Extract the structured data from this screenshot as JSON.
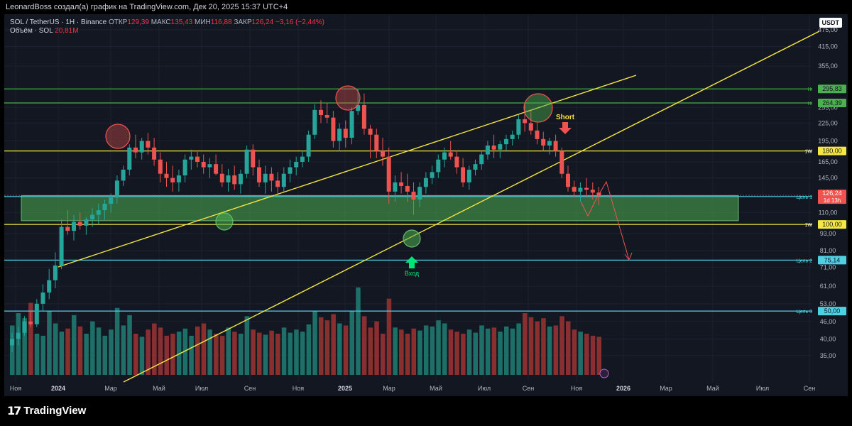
{
  "header": {
    "text": "LeonardBoss создал(а) график на TradingView.com, Дек 20, 2025 15:37 UTC+4"
  },
  "legend": {
    "symbol": "SOL / TetherUS · 1H · Binance",
    "open_label": "ОТКР",
    "open": "129,39",
    "high_label": "МАКС",
    "high": "135,43",
    "low_label": "МИН",
    "low": "116,88",
    "close_label": "ЗАКР",
    "close": "126,24",
    "change": "−3,16 (−2,44%)",
    "volume_label": "Объём · SOL",
    "volume": "20,81M"
  },
  "currency": "USDT",
  "footer": {
    "brand": "TradingView",
    "mark": "17"
  },
  "colors": {
    "background": "#131722",
    "up": "#26a69a",
    "down": "#ef5350",
    "yellow": "#f5e642",
    "green_line": "#4caf50",
    "cyan_line": "#4dd0e1",
    "zone": "#4caf50"
  },
  "chart_data": {
    "type": "candlestick",
    "price_scale": "log",
    "ylim": [
      30,
      480
    ],
    "y_ticks": [
      "475,00",
      "415,00",
      "355,00",
      "295,00",
      "255,00",
      "225,00",
      "195,00",
      "165,00",
      "145,00",
      "125,00",
      "110,00",
      "93,00",
      "81,00",
      "71,00",
      "61,00",
      "53,00",
      "46,00",
      "40,00",
      "35,00"
    ],
    "x_ticks": [
      "Ноя",
      "2024",
      "Мар",
      "Май",
      "Июл",
      "Сен",
      "Ноя",
      "2025",
      "Мар",
      "Май",
      "Июл",
      "Сен",
      "Ноя",
      "2026",
      "Мар",
      "Май",
      "Июл",
      "Сен"
    ],
    "x_tick_bold": [
      "2024",
      "2025",
      "2026"
    ],
    "candles": [
      [
        38,
        42,
        36,
        40
      ],
      [
        40,
        44,
        38,
        42
      ],
      [
        42,
        48,
        41,
        46
      ],
      [
        46,
        50,
        44,
        45
      ],
      [
        45,
        55,
        44,
        53
      ],
      [
        53,
        62,
        50,
        58
      ],
      [
        58,
        70,
        55,
        64
      ],
      [
        64,
        80,
        60,
        72
      ],
      [
        72,
        104,
        70,
        98
      ],
      [
        98,
        112,
        92,
        95
      ],
      [
        95,
        108,
        88,
        102
      ],
      [
        102,
        110,
        96,
        99
      ],
      [
        99,
        106,
        92,
        104
      ],
      [
        104,
        114,
        98,
        108
      ],
      [
        108,
        118,
        100,
        112
      ],
      [
        112,
        122,
        104,
        118
      ],
      [
        118,
        128,
        110,
        124
      ],
      [
        124,
        148,
        118,
        142
      ],
      [
        142,
        160,
        136,
        155
      ],
      [
        155,
        190,
        148,
        185
      ],
      [
        185,
        205,
        170,
        178
      ],
      [
        178,
        200,
        168,
        195
      ],
      [
        195,
        208,
        175,
        185
      ],
      [
        185,
        200,
        160,
        168
      ],
      [
        168,
        178,
        140,
        150
      ],
      [
        150,
        165,
        135,
        145
      ],
      [
        145,
        160,
        130,
        140
      ],
      [
        140,
        155,
        130,
        148
      ],
      [
        148,
        175,
        140,
        168
      ],
      [
        168,
        182,
        155,
        172
      ],
      [
        172,
        180,
        158,
        165
      ],
      [
        165,
        175,
        150,
        158
      ],
      [
        158,
        170,
        145,
        162
      ],
      [
        162,
        175,
        148,
        150
      ],
      [
        150,
        162,
        135,
        140
      ],
      [
        140,
        156,
        130,
        148
      ],
      [
        148,
        160,
        132,
        138
      ],
      [
        138,
        155,
        128,
        150
      ],
      [
        150,
        188,
        145,
        182
      ],
      [
        182,
        190,
        148,
        158
      ],
      [
        158,
        168,
        135,
        140
      ],
      [
        140,
        160,
        128,
        150
      ],
      [
        150,
        158,
        130,
        142
      ],
      [
        142,
        152,
        128,
        135
      ],
      [
        135,
        158,
        130,
        150
      ],
      [
        150,
        168,
        140,
        158
      ],
      [
        158,
        172,
        148,
        165
      ],
      [
        165,
        180,
        158,
        172
      ],
      [
        172,
        212,
        165,
        205
      ],
      [
        205,
        262,
        198,
        250
      ],
      [
        250,
        270,
        225,
        240
      ],
      [
        240,
        265,
        225,
        235
      ],
      [
        235,
        248,
        185,
        195
      ],
      [
        195,
        225,
        180,
        215
      ],
      [
        215,
        230,
        185,
        200
      ],
      [
        200,
        255,
        190,
        248
      ],
      [
        248,
        295,
        240,
        260
      ],
      [
        260,
        285,
        205,
        215
      ],
      [
        215,
        222,
        170,
        205
      ],
      [
        205,
        215,
        170,
        180
      ],
      [
        180,
        200,
        160,
        172
      ],
      [
        172,
        185,
        118,
        130
      ],
      [
        130,
        148,
        120,
        140
      ],
      [
        140,
        152,
        128,
        136
      ],
      [
        136,
        150,
        120,
        130
      ],
      [
        130,
        140,
        108,
        122
      ],
      [
        122,
        140,
        115,
        135
      ],
      [
        135,
        152,
        128,
        145
      ],
      [
        145,
        160,
        138,
        152
      ],
      [
        152,
        175,
        145,
        168
      ],
      [
        168,
        185,
        158,
        178
      ],
      [
        178,
        195,
        168,
        172
      ],
      [
        172,
        180,
        150,
        158
      ],
      [
        158,
        170,
        135,
        140
      ],
      [
        140,
        160,
        132,
        155
      ],
      [
        155,
        168,
        148,
        162
      ],
      [
        162,
        180,
        155,
        175
      ],
      [
        175,
        195,
        168,
        188
      ],
      [
        188,
        205,
        170,
        182
      ],
      [
        182,
        195,
        170,
        190
      ],
      [
        190,
        205,
        180,
        198
      ],
      [
        198,
        212,
        188,
        205
      ],
      [
        205,
        240,
        198,
        232
      ],
      [
        232,
        262,
        210,
        225
      ],
      [
        225,
        248,
        205,
        212
      ],
      [
        212,
        225,
        190,
        198
      ],
      [
        198,
        210,
        180,
        188
      ],
      [
        188,
        200,
        175,
        195
      ],
      [
        195,
        205,
        172,
        180
      ],
      [
        180,
        185,
        145,
        150
      ],
      [
        150,
        160,
        130,
        135
      ],
      [
        135,
        142,
        125,
        130
      ],
      [
        130,
        140,
        120,
        134
      ],
      [
        134,
        145,
        125,
        132
      ],
      [
        132,
        140,
        122,
        129
      ],
      [
        129,
        135,
        117,
        126
      ]
    ],
    "volume": [
      48,
      60,
      55,
      70,
      40,
      38,
      62,
      50,
      42,
      45,
      58,
      47,
      40,
      52,
      46,
      38,
      44,
      65,
      48,
      58,
      40,
      37,
      44,
      50,
      46,
      38,
      40,
      42,
      45,
      38,
      47,
      50,
      44,
      40,
      38,
      46,
      42,
      40,
      57,
      44,
      41,
      39,
      43,
      40,
      46,
      41,
      44,
      42,
      49,
      62,
      56,
      53,
      59,
      50,
      48,
      62,
      85,
      57,
      46,
      52,
      40,
      74,
      46,
      44,
      40,
      45,
      43,
      48,
      47,
      53,
      50,
      44,
      42,
      40,
      44,
      41,
      48,
      45,
      46,
      42,
      47,
      45,
      50,
      60,
      56,
      52,
      55,
      47,
      48,
      57,
      52,
      44,
      42,
      40,
      38,
      37
    ],
    "levels": [
      {
        "price": "295,83",
        "value": 295.83,
        "side_label": "Hi",
        "color": "#4caf50",
        "tag": "#4caf50"
      },
      {
        "price": "264,39",
        "value": 264.39,
        "side_label": "Hi",
        "color": "#4caf50",
        "tag": "#4caf50"
      },
      {
        "price": "180,00",
        "value": 180.0,
        "side_label": "1W",
        "color": "#f5e642",
        "tag": "#f5e642"
      },
      {
        "price": "125,00",
        "value": 125.0,
        "side_label": "Цель 1",
        "color": "#4dd0e1",
        "tag": "#4dd0e1"
      },
      {
        "price": "100,00",
        "value": 100.0,
        "side_label": "1W",
        "color": "#f5e642",
        "tag": "#f5e642"
      },
      {
        "price": "75,14",
        "value": 75.14,
        "side_label": "Цель 2",
        "color": "#4dd0e1",
        "tag": "#4dd0e1"
      },
      {
        "price": "50,00",
        "value": 50.0,
        "side_label": "Цель 3",
        "color": "#4dd0e1",
        "tag": "#4dd0e1"
      }
    ],
    "current": {
      "price": "126,24",
      "value": 126.24,
      "countdown": "1d 13h"
    },
    "zone": {
      "from": 103,
      "to": 126
    },
    "annotations": {
      "short": "Short",
      "entry": "Вход"
    }
  }
}
